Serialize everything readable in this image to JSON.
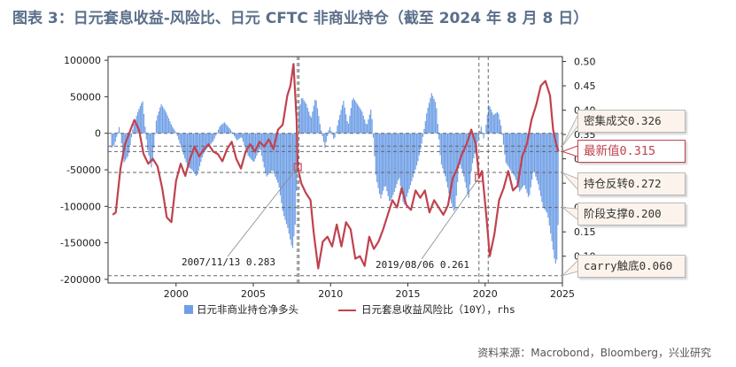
{
  "title": "图表 3：日元套息收益-风险比、日元 CFTC 非商业持仓（截至 2024 年 8 月 8 日）",
  "source": "资料来源：Macrobond，Bloomberg，兴业研究",
  "colors": {
    "bars": "#6f9fe6",
    "line": "#c0424e",
    "ref": "#666666"
  },
  "chart_data": {
    "type": "bar+line",
    "x_range": [
      1995.6,
      2025.0
    ],
    "x_ticks": [
      2000,
      2005,
      2010,
      2015,
      2020,
      2025
    ],
    "left_axis": {
      "range": [
        -205000,
        105000
      ],
      "ticks": [
        100000,
        50000,
        0,
        -50000,
        -100000,
        -150000,
        -200000
      ],
      "tick_labels": [
        "100000",
        "50000",
        "0",
        "-50000",
        "-100000",
        "-150000",
        "-200000"
      ]
    },
    "right_axis": {
      "range": [
        0.045,
        0.51
      ],
      "ticks": [
        0.1,
        0.15,
        0.2,
        0.25,
        0.3,
        0.35,
        0.4,
        0.45,
        0.5
      ],
      "tick_labels": [
        "0.10",
        "0.15",
        "0.20",
        "0.25",
        "0.30",
        "0.35",
        "0.40",
        "0.45",
        "0.50"
      ]
    },
    "series": [
      {
        "name": "日元非商业持仓净多头",
        "axis": "left",
        "type": "bar",
        "points": [
          [
            1995.8,
            -20000
          ],
          [
            1996.0,
            -15000
          ],
          [
            1996.3,
            10000
          ],
          [
            1996.6,
            -40000
          ],
          [
            1996.9,
            -30000
          ],
          [
            1997.2,
            10000
          ],
          [
            1997.5,
            30000
          ],
          [
            1997.8,
            45000
          ],
          [
            1998.1,
            -20000
          ],
          [
            1998.4,
            -50000
          ],
          [
            1998.7,
            20000
          ],
          [
            1999.0,
            40000
          ],
          [
            1999.3,
            30000
          ],
          [
            1999.7,
            10000
          ],
          [
            2000.0,
            0
          ],
          [
            2000.3,
            -20000
          ],
          [
            2000.7,
            -45000
          ],
          [
            2001.0,
            -50000
          ],
          [
            2001.3,
            -60000
          ],
          [
            2001.7,
            -30000
          ],
          [
            2002.0,
            -20000
          ],
          [
            2002.4,
            -10000
          ],
          [
            2002.8,
            10000
          ],
          [
            2003.1,
            15000
          ],
          [
            2003.5,
            5000
          ],
          [
            2003.9,
            -10000
          ],
          [
            2004.2,
            -5000
          ],
          [
            2004.6,
            -30000
          ],
          [
            2005.0,
            -40000
          ],
          [
            2005.4,
            -20000
          ],
          [
            2005.8,
            -60000
          ],
          [
            2006.2,
            -50000
          ],
          [
            2006.6,
            -70000
          ],
          [
            2006.9,
            -110000
          ],
          [
            2007.2,
            -130000
          ],
          [
            2007.5,
            -160000
          ],
          [
            2007.7,
            -120000
          ],
          [
            2007.9,
            30000
          ],
          [
            2008.1,
            50000
          ],
          [
            2008.4,
            40000
          ],
          [
            2008.7,
            20000
          ],
          [
            2009.0,
            50000
          ],
          [
            2009.3,
            10000
          ],
          [
            2009.6,
            -20000
          ],
          [
            2009.9,
            10000
          ],
          [
            2010.2,
            -10000
          ],
          [
            2010.5,
            20000
          ],
          [
            2010.8,
            45000
          ],
          [
            2011.1,
            10000
          ],
          [
            2011.4,
            50000
          ],
          [
            2011.7,
            40000
          ],
          [
            2012.0,
            30000
          ],
          [
            2012.3,
            10000
          ],
          [
            2012.6,
            35000
          ],
          [
            2012.9,
            -60000
          ],
          [
            2013.2,
            -90000
          ],
          [
            2013.5,
            -70000
          ],
          [
            2013.8,
            -95000
          ],
          [
            2014.1,
            -80000
          ],
          [
            2014.4,
            -60000
          ],
          [
            2014.7,
            -100000
          ],
          [
            2015.0,
            -80000
          ],
          [
            2015.3,
            -60000
          ],
          [
            2015.6,
            -40000
          ],
          [
            2015.9,
            -10000
          ],
          [
            2016.2,
            30000
          ],
          [
            2016.5,
            55000
          ],
          [
            2016.8,
            40000
          ],
          [
            2017.1,
            -40000
          ],
          [
            2017.4,
            -60000
          ],
          [
            2017.7,
            -90000
          ],
          [
            2018.0,
            -110000
          ],
          [
            2018.3,
            -40000
          ],
          [
            2018.6,
            -60000
          ],
          [
            2018.9,
            -90000
          ],
          [
            2019.1,
            -45000
          ],
          [
            2019.4,
            -20000
          ],
          [
            2019.7,
            10000
          ],
          [
            2019.9,
            -10000
          ],
          [
            2020.2,
            40000
          ],
          [
            2020.5,
            25000
          ],
          [
            2020.8,
            30000
          ],
          [
            2021.0,
            10000
          ],
          [
            2021.3,
            -40000
          ],
          [
            2021.6,
            -50000
          ],
          [
            2021.9,
            -60000
          ],
          [
            2022.2,
            -80000
          ],
          [
            2022.5,
            -70000
          ],
          [
            2022.8,
            -90000
          ],
          [
            2023.1,
            -50000
          ],
          [
            2023.4,
            -70000
          ],
          [
            2023.7,
            -100000
          ],
          [
            2024.0,
            -110000
          ],
          [
            2024.3,
            -150000
          ],
          [
            2024.5,
            -180000
          ],
          [
            2024.65,
            -170000
          ],
          [
            2024.75,
            -40000
          ]
        ]
      },
      {
        "name": "日元套息收益风险比（10Y），rhs",
        "axis": "right",
        "type": "line",
        "points": [
          [
            1995.9,
            0.185
          ],
          [
            1996.1,
            0.19
          ],
          [
            1996.4,
            0.28
          ],
          [
            1996.7,
            0.33
          ],
          [
            1997.0,
            0.355
          ],
          [
            1997.3,
            0.38
          ],
          [
            1997.6,
            0.36
          ],
          [
            1997.9,
            0.31
          ],
          [
            1998.2,
            0.29
          ],
          [
            1998.5,
            0.3
          ],
          [
            1998.8,
            0.285
          ],
          [
            1999.1,
            0.24
          ],
          [
            1999.4,
            0.18
          ],
          [
            1999.7,
            0.17
          ],
          [
            2000.0,
            0.255
          ],
          [
            2000.3,
            0.29
          ],
          [
            2000.6,
            0.265
          ],
          [
            2000.9,
            0.3
          ],
          [
            2001.2,
            0.325
          ],
          [
            2001.5,
            0.305
          ],
          [
            2001.8,
            0.32
          ],
          [
            2002.1,
            0.33
          ],
          [
            2002.4,
            0.315
          ],
          [
            2002.7,
            0.31
          ],
          [
            2003.0,
            0.295
          ],
          [
            2003.3,
            0.32
          ],
          [
            2003.6,
            0.335
          ],
          [
            2003.9,
            0.3
          ],
          [
            2004.2,
            0.28
          ],
          [
            2004.5,
            0.315
          ],
          [
            2004.8,
            0.33
          ],
          [
            2005.1,
            0.315
          ],
          [
            2005.4,
            0.335
          ],
          [
            2005.7,
            0.325
          ],
          [
            2006.0,
            0.34
          ],
          [
            2006.3,
            0.32
          ],
          [
            2006.6,
            0.36
          ],
          [
            2006.9,
            0.37
          ],
          [
            2007.2,
            0.43
          ],
          [
            2007.4,
            0.45
          ],
          [
            2007.6,
            0.495
          ],
          [
            2007.8,
            0.38
          ],
          [
            2007.87,
            0.283
          ],
          [
            2008.1,
            0.25
          ],
          [
            2008.4,
            0.23
          ],
          [
            2008.7,
            0.215
          ],
          [
            2008.9,
            0.15
          ],
          [
            2009.2,
            0.075
          ],
          [
            2009.5,
            0.13
          ],
          [
            2009.8,
            0.14
          ],
          [
            2010.1,
            0.12
          ],
          [
            2010.4,
            0.165
          ],
          [
            2010.7,
            0.12
          ],
          [
            2011.0,
            0.17
          ],
          [
            2011.3,
            0.155
          ],
          [
            2011.6,
            0.095
          ],
          [
            2011.9,
            0.1
          ],
          [
            2012.2,
            0.08
          ],
          [
            2012.5,
            0.14
          ],
          [
            2012.8,
            0.115
          ],
          [
            2013.1,
            0.13
          ],
          [
            2013.4,
            0.155
          ],
          [
            2013.7,
            0.185
          ],
          [
            2014.0,
            0.215
          ],
          [
            2014.3,
            0.2
          ],
          [
            2014.6,
            0.24
          ],
          [
            2014.9,
            0.205
          ],
          [
            2015.2,
            0.195
          ],
          [
            2015.5,
            0.235
          ],
          [
            2015.8,
            0.22
          ],
          [
            2016.1,
            0.235
          ],
          [
            2016.4,
            0.19
          ],
          [
            2016.7,
            0.215
          ],
          [
            2017.0,
            0.2
          ],
          [
            2017.3,
            0.185
          ],
          [
            2017.6,
            0.205
          ],
          [
            2017.9,
            0.26
          ],
          [
            2018.2,
            0.28
          ],
          [
            2018.5,
            0.31
          ],
          [
            2018.8,
            0.33
          ],
          [
            2019.1,
            0.36
          ],
          [
            2019.4,
            0.33
          ],
          [
            2019.6,
            0.261
          ],
          [
            2019.8,
            0.275
          ],
          [
            2020.1,
            0.175
          ],
          [
            2020.3,
            0.1
          ],
          [
            2020.6,
            0.145
          ],
          [
            2020.9,
            0.215
          ],
          [
            2021.2,
            0.24
          ],
          [
            2021.5,
            0.275
          ],
          [
            2021.8,
            0.235
          ],
          [
            2022.1,
            0.245
          ],
          [
            2022.4,
            0.305
          ],
          [
            2022.7,
            0.33
          ],
          [
            2023.0,
            0.38
          ],
          [
            2023.3,
            0.41
          ],
          [
            2023.6,
            0.45
          ],
          [
            2023.9,
            0.46
          ],
          [
            2024.2,
            0.43
          ],
          [
            2024.4,
            0.36
          ],
          [
            2024.6,
            0.33
          ],
          [
            2024.75,
            0.315
          ]
        ]
      }
    ],
    "reference_lines": [
      {
        "label": "密集成交",
        "value": 0.326
      },
      {
        "label": "最新值",
        "value": 0.315
      },
      {
        "label": "持仓反转",
        "value": 0.272
      },
      {
        "label": "阶段支撑",
        "value": 0.2
      },
      {
        "label": "carry触底",
        "value": 0.06
      }
    ],
    "vertical_reference_years": [
      2007.85,
      2007.95,
      2019.6,
      2020.2
    ],
    "annotations": [
      {
        "label": "2007/11/13",
        "value": "0.283",
        "x": 2007.87,
        "y": 0.283
      },
      {
        "label": "2019/08/06",
        "value": "0.261",
        "x": 2019.6,
        "y": 0.261
      }
    ],
    "legend": [
      {
        "name": "日元非商业持仓净多头",
        "type": "bar"
      },
      {
        "name": "日元套息收益风险比（10Y），rhs",
        "type": "line"
      }
    ]
  }
}
